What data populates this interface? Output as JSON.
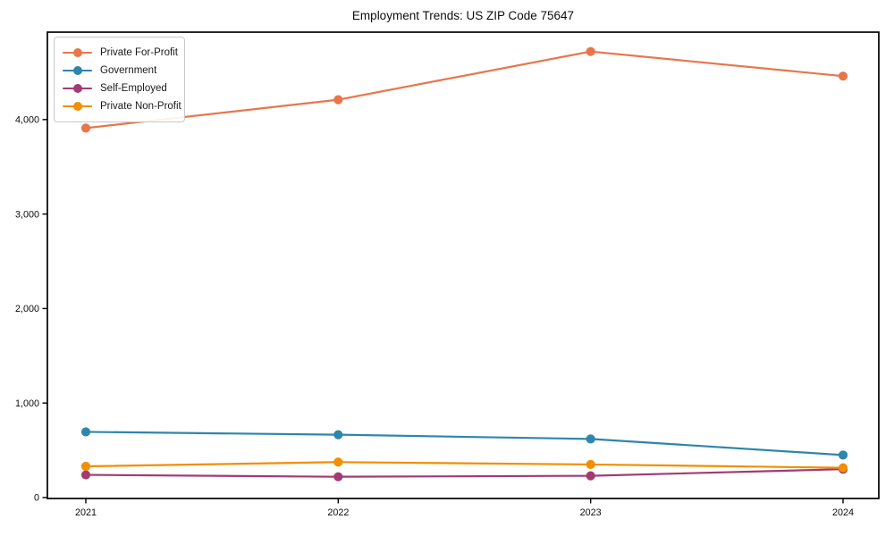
{
  "chart_data": {
    "type": "line",
    "title": "Employment Trends: US ZIP Code 75647",
    "x": [
      "2021",
      "2022",
      "2023",
      "2024"
    ],
    "series": [
      {
        "name": "Private For-Profit",
        "color": "#E8764B",
        "values": [
          3910,
          4210,
          4720,
          4460
        ]
      },
      {
        "name": "Government",
        "color": "#2E86AB",
        "values": [
          695,
          665,
          620,
          450
        ]
      },
      {
        "name": "Self-Employed",
        "color": "#A23B72",
        "values": [
          240,
          220,
          230,
          300
        ]
      },
      {
        "name": "Private Non-Profit",
        "color": "#F18F01",
        "values": [
          330,
          375,
          350,
          315
        ]
      }
    ],
    "xlabel": "",
    "ylabel": "",
    "ylim": [
      -10,
      4925
    ],
    "yticks": [
      0,
      1000,
      2000,
      3000,
      4000
    ],
    "ytick_labels": [
      "0",
      "1,000",
      "2,000",
      "3,000",
      "4,000"
    ],
    "legend_position": "upper-left",
    "grid": false,
    "marker": "circle",
    "axis_color": "#000000",
    "tick_label_color": "#0d0d0d",
    "background": "#ffffff"
  }
}
